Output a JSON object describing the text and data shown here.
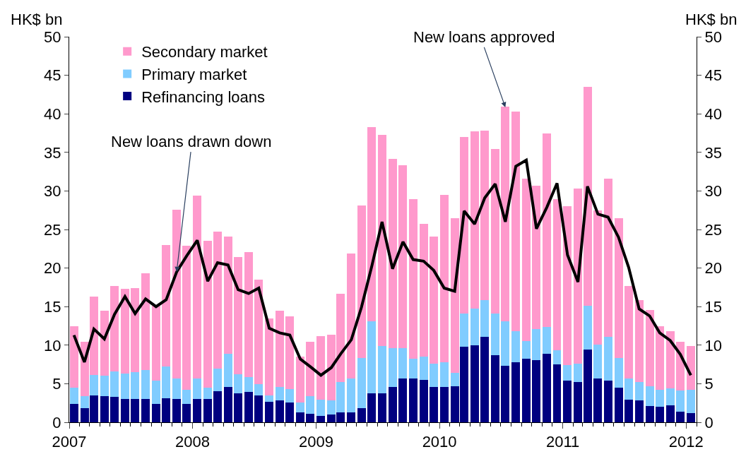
{
  "chart_data": {
    "type": "bar",
    "stacked": true,
    "ylabel": "HK$ bn",
    "y2label": "HK$ bn",
    "x": [
      "2007-01-15",
      "2007-02-15",
      "2007-03-15",
      "2007-04-15",
      "2007-05-15",
      "2007-06-15",
      "2007-07-15",
      "2007-08-15",
      "2007-09-15",
      "2007-10-15",
      "2007-11-15",
      "2007-12-15",
      "2008-01-15",
      "2008-02-15",
      "2008-03-15",
      "2008-04-15",
      "2008-05-15",
      "2008-06-15",
      "2008-07-15",
      "2008-08-15",
      "2008-09-15",
      "2008-10-15",
      "2008-11-15",
      "2008-12-15",
      "2009-01-15",
      "2009-02-15",
      "2009-03-15",
      "2009-04-15",
      "2009-05-15",
      "2009-06-15",
      "2009-07-15",
      "2009-08-15",
      "2009-09-15",
      "2009-10-15",
      "2009-11-15",
      "2009-12-15",
      "2010-01-15",
      "2010-02-15",
      "2010-03-15",
      "2010-04-15",
      "2010-05-15",
      "2010-06-15",
      "2010-07-15",
      "2010-08-15",
      "2010-09-15",
      "2010-10-15",
      "2010-11-15",
      "2010-12-15",
      "2011-01-15",
      "2011-02-15",
      "2011-03-15",
      "2011-04-15",
      "2011-05-15",
      "2011-06-15",
      "2011-07-15",
      "2011-08-15",
      "2011-09-15",
      "2011-10-15",
      "2011-11-15",
      "2011-12-15",
      "2012-01-15"
    ],
    "series": [
      {
        "name": "Refinancing loans",
        "color": "#000080",
        "values": [
          2.4,
          1.8,
          3.5,
          3.4,
          3.3,
          3.0,
          3.0,
          3.0,
          2.4,
          3.1,
          3.0,
          2.4,
          3.0,
          3.0,
          4.0,
          4.6,
          3.8,
          3.9,
          3.5,
          2.7,
          2.8,
          2.6,
          1.3,
          1.1,
          0.8,
          1.0,
          1.3,
          1.3,
          1.8,
          3.8,
          3.8,
          4.6,
          5.7,
          5.7,
          5.5,
          4.6,
          4.6,
          4.7,
          9.8,
          10.0,
          11.1,
          8.7,
          7.3,
          7.8,
          8.2,
          8.1,
          8.9,
          7.5,
          5.4,
          5.2,
          9.4,
          5.7,
          5.4,
          4.5,
          2.9,
          2.8,
          2.1,
          2.0,
          2.2,
          1.4,
          1.2
        ]
      },
      {
        "name": "Primary market",
        "color": "#80ccff",
        "values": [
          2.1,
          1.6,
          2.6,
          2.6,
          3.3,
          3.3,
          3.5,
          3.8,
          3.0,
          4.1,
          2.7,
          1.8,
          2.7,
          1.5,
          3.0,
          4.3,
          2.4,
          2.0,
          1.4,
          0.8,
          1.8,
          1.7,
          1.3,
          2.3,
          2.1,
          1.8,
          3.9,
          4.4,
          6.5,
          9.3,
          6.1,
          5.0,
          3.9,
          2.5,
          3.0,
          3.0,
          3.2,
          1.7,
          4.3,
          4.7,
          4.7,
          5.4,
          5.8,
          4.0,
          2.3,
          4.0,
          3.5,
          1.8,
          2.0,
          2.4,
          5.7,
          4.4,
          5.7,
          3.8,
          2.8,
          2.4,
          2.6,
          2.2,
          2.2,
          2.7,
          3.0
        ]
      },
      {
        "name": "Secondary market",
        "color": "#ff99cc",
        "values": [
          8.0,
          7.0,
          10.2,
          8.5,
          11.1,
          11.0,
          10.9,
          12.5,
          9.7,
          15.8,
          21.9,
          18.7,
          23.7,
          19.0,
          17.7,
          15.2,
          15.2,
          16.2,
          13.6,
          10.0,
          9.9,
          9.4,
          5.9,
          7.0,
          8.3,
          8.6,
          11.5,
          16.2,
          19.8,
          25.2,
          27.4,
          24.6,
          23.7,
          20.7,
          17.2,
          16.5,
          21.7,
          20.1,
          22.9,
          23.0,
          22.0,
          21.3,
          27.8,
          28.5,
          21.1,
          18.6,
          25.1,
          19.6,
          20.6,
          22.7,
          28.4,
          17.4,
          20.5,
          18.2,
          12.0,
          10.6,
          9.9,
          8.3,
          7.4,
          6.3,
          5.7
        ]
      },
      {
        "type": "line",
        "axis": "y2",
        "color": "#000000",
        "values": [
          11.3,
          7.8,
          12.1,
          10.8,
          14.0,
          16.3,
          14.1,
          16.0,
          15.0,
          15.9,
          19.5,
          21.6,
          23.6,
          18.3,
          20.7,
          20.4,
          17.2,
          16.7,
          17.4,
          12.2,
          11.6,
          11.3,
          8.2,
          7.2,
          6.1,
          7.1,
          8.9,
          10.7,
          14.9,
          20.3,
          26.0,
          19.9,
          23.4,
          21.1,
          20.9,
          19.7,
          17.4,
          17.0,
          27.4,
          25.7,
          29.1,
          30.9,
          26.0,
          33.2,
          34.0,
          25.1,
          27.9,
          31.0,
          21.7,
          18.2,
          30.6,
          27.0,
          26.6,
          24.0,
          20.1,
          14.7,
          13.8,
          11.6,
          10.6,
          8.8,
          6.1
        ]
      }
    ],
    "xlim": [
      "2007-01-01",
      "2012-02-01"
    ],
    "xticks": [
      "2007",
      "2008",
      "2009",
      "2010",
      "2011",
      "2012"
    ],
    "ylim": [
      0,
      50
    ],
    "yticks": [
      0,
      5,
      10,
      15,
      20,
      25,
      30,
      35,
      40,
      45,
      50
    ],
    "y2lim": [
      0,
      50
    ],
    "y2ticks": [
      0,
      5,
      10,
      15,
      20,
      25,
      30,
      35,
      40,
      45,
      50
    ],
    "annotations": [
      {
        "text": "New loans drawn down",
        "x": "2007-11-15",
        "y": 19.5
      },
      {
        "text": "New loans approved",
        "x": "2010-07-15",
        "y": 40.85
      }
    ],
    "legend": "top left"
  }
}
